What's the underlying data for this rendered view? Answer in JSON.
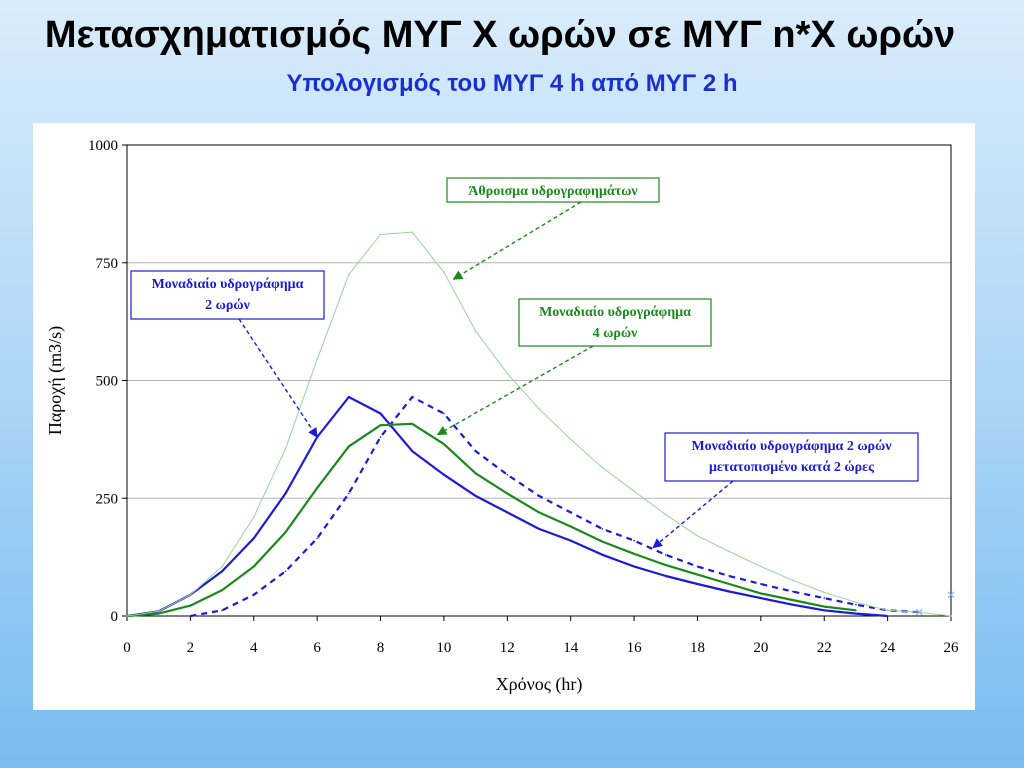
{
  "slide": {
    "title": "Μετασχηματισμός ΜΥΓ Χ ωρών σε ΜΥΓ n*X ωρών",
    "subtitle": "Υπολογισμός του ΜΥΓ 4 h από ΜΥΓ 2 h"
  },
  "colors": {
    "blue": "#1a1ad8",
    "green": "#1a8a1a",
    "light_green": "#9ad29a",
    "grid": "#b5b5b5"
  },
  "chart_data": {
    "type": "line",
    "xlabel": "Χρόνος (hr)",
    "ylabel": "Παροχή (m3/s)",
    "xlim": [
      0,
      26
    ],
    "ylim": [
      0,
      1000
    ],
    "xticks": [
      0,
      2,
      4,
      6,
      8,
      10,
      12,
      14,
      16,
      18,
      20,
      22,
      24,
      26
    ],
    "yticks": [
      0,
      250,
      500,
      750,
      1000
    ],
    "grid": "horizontal",
    "series": [
      {
        "name": "Μοναδιαίο υδρογράφημα 2 ωρών",
        "style": "solid-blue",
        "x": [
          0,
          1,
          2,
          3,
          4,
          5,
          6,
          7,
          8,
          9,
          10,
          11,
          12,
          13,
          14,
          15,
          16,
          17,
          18,
          19,
          20,
          21,
          22,
          23,
          24
        ],
        "y": [
          0,
          10,
          45,
          95,
          165,
          260,
          380,
          465,
          430,
          350,
          300,
          255,
          220,
          185,
          160,
          130,
          105,
          85,
          68,
          52,
          38,
          24,
          12,
          5,
          0
        ]
      },
      {
        "name": "Μοναδιαίο υδρογράφημα 2 ωρών μετατοπισμένο κατά 2 ώρες",
        "style": "dashed-blue",
        "x": [
          2,
          3,
          4,
          5,
          6,
          7,
          8,
          9,
          10,
          11,
          12,
          13,
          14,
          15,
          16,
          17,
          18,
          19,
          20,
          21,
          22,
          23,
          24,
          25
        ],
        "y": [
          0,
          12,
          45,
          95,
          165,
          260,
          380,
          465,
          430,
          350,
          300,
          255,
          220,
          185,
          160,
          130,
          105,
          85,
          68,
          52,
          38,
          24,
          12,
          8
        ]
      },
      {
        "name": "Μοναδιαίο υδρογράφημα 4 ωρών",
        "style": "solid-green",
        "x": [
          0,
          1,
          2,
          3,
          4,
          5,
          6,
          7,
          8,
          9,
          10,
          11,
          12,
          13,
          14,
          15,
          16,
          17,
          18,
          19,
          20,
          21,
          22,
          23
        ],
        "y": [
          0,
          5,
          22,
          55,
          105,
          178,
          272,
          360,
          405,
          408,
          365,
          303,
          260,
          220,
          190,
          158,
          132,
          108,
          88,
          68,
          48,
          34,
          20,
          12
        ]
      },
      {
        "name": "Άθροισμα υδρογραφημάτων",
        "style": "thin-light-green",
        "x": [
          0,
          1,
          2,
          3,
          4,
          5,
          6,
          7,
          8,
          9,
          10,
          11,
          12,
          13,
          14,
          15,
          16,
          17,
          18,
          19,
          20,
          21,
          22,
          23,
          24,
          25,
          26
        ],
        "y": [
          0,
          10,
          45,
          105,
          210,
          355,
          545,
          725,
          810,
          815,
          730,
          605,
          515,
          440,
          375,
          315,
          265,
          215,
          170,
          137,
          105,
          76,
          50,
          29,
          12,
          8,
          0
        ]
      }
    ],
    "annotations": [
      {
        "text_lines": [
          "Άθροισμα υδρογραφημάτων"
        ],
        "color": "green",
        "arrow_to": [
          10.3,
          715
        ]
      },
      {
        "text_lines": [
          "Μοναδιαίο υδρογράφημα",
          "2 ωρών"
        ],
        "color": "blue",
        "arrow_to": [
          6.0,
          380
        ]
      },
      {
        "text_lines": [
          "Μοναδιαίο υδρογράφημα",
          "4 ωρών"
        ],
        "color": "green",
        "arrow_to": [
          9.8,
          385
        ]
      },
      {
        "text_lines": [
          "Μοναδιαίο υδρογράφημα 2 ωρών",
          "μετατοπισμένο κατά 2 ώρες"
        ],
        "color": "blue",
        "arrow_to": [
          16.6,
          145
        ]
      }
    ]
  }
}
